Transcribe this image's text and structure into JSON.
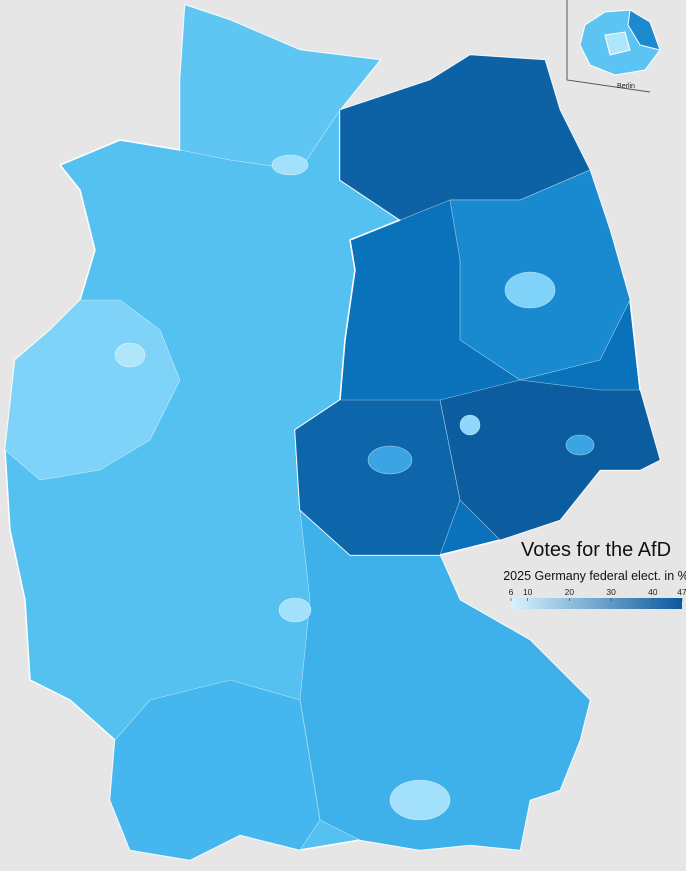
{
  "title": "Votes for the AfD",
  "subtitle": "2025 Germany federal elect. in %",
  "inset_label": "Berlin",
  "legend": {
    "range": [
      6,
      47
    ],
    "ticks": [
      6,
      10,
      20,
      30,
      40,
      47
    ],
    "colors": [
      "#d9f3ff",
      "#0a5a9e"
    ]
  }
}
